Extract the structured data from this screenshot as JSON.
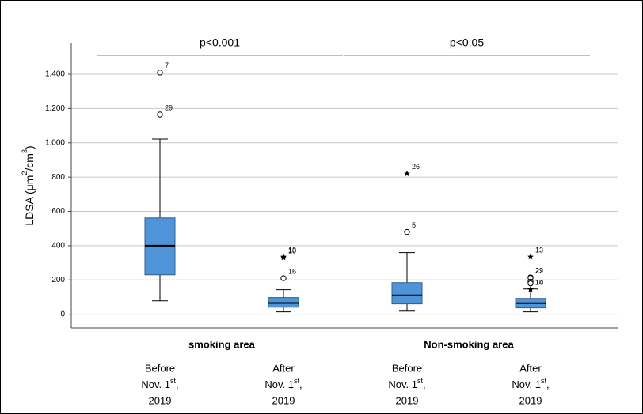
{
  "chart_data": {
    "type": "box",
    "ylabel": [
      "LDSA (μm",
      "2",
      "/cm",
      "3",
      ")"
    ],
    "ylim": [
      -80,
      1580
    ],
    "yticks": [
      0,
      200,
      400,
      600,
      800,
      {
        "value": 1000,
        "label": "1.000"
      },
      {
        "value": 1200,
        "label": "1.200"
      },
      {
        "value": 1400,
        "label": "1.400"
      }
    ],
    "grid": true,
    "color": "#4f94d9",
    "groups": [
      "smoking area",
      "Non-smoking area"
    ],
    "annotations": [
      "p<0.001",
      "p<0.05"
    ],
    "categories": [
      [
        "Before",
        [
          "Nov. 1",
          "st",
          ","
        ],
        "2019"
      ],
      [
        "After",
        [
          "Nov. 1",
          "st",
          ","
        ],
        "2019"
      ],
      [
        "Before",
        [
          "Nov. 1",
          "st",
          ","
        ],
        "2019"
      ],
      [
        "After",
        [
          "Nov. 1",
          "st",
          ","
        ],
        "2019"
      ]
    ],
    "boxes": [
      {
        "min": 78,
        "q1": 230,
        "median": 400,
        "q3": 562,
        "max": 1022,
        "outliers": [
          {
            "value": 1410,
            "label": "7",
            "marker": "circle"
          },
          {
            "value": 1165,
            "label": "29",
            "marker": "circle"
          }
        ]
      },
      {
        "min": 14,
        "q1": 41,
        "median": 65,
        "q3": 97,
        "max": 143,
        "outliers": [
          {
            "value": 335,
            "label": "13",
            "marker": "star"
          },
          {
            "value": 330,
            "label": "10",
            "marker": "star"
          },
          {
            "value": 210,
            "label": "16",
            "marker": "circle"
          }
        ]
      },
      {
        "min": 18,
        "q1": 60,
        "median": 110,
        "q3": 184,
        "max": 360,
        "outliers": [
          {
            "value": 820,
            "label": "26",
            "marker": "star"
          },
          {
            "value": 480,
            "label": "5",
            "marker": "circle"
          }
        ]
      },
      {
        "min": 14,
        "q1": 37,
        "median": 64,
        "q3": 92,
        "max": 147,
        "outliers": [
          {
            "value": 335,
            "label": "13",
            "marker": "star"
          },
          {
            "value": 215,
            "label": "29",
            "marker": "circle"
          },
          {
            "value": 212,
            "label": "22",
            "marker": "circle"
          },
          {
            "value": 190,
            "marker": "circle"
          },
          {
            "value": 180,
            "marker": "circle"
          },
          {
            "value": 145,
            "label": "14",
            "marker": "star"
          },
          {
            "value": 145,
            "label": "10",
            "marker": "star"
          }
        ]
      }
    ]
  }
}
